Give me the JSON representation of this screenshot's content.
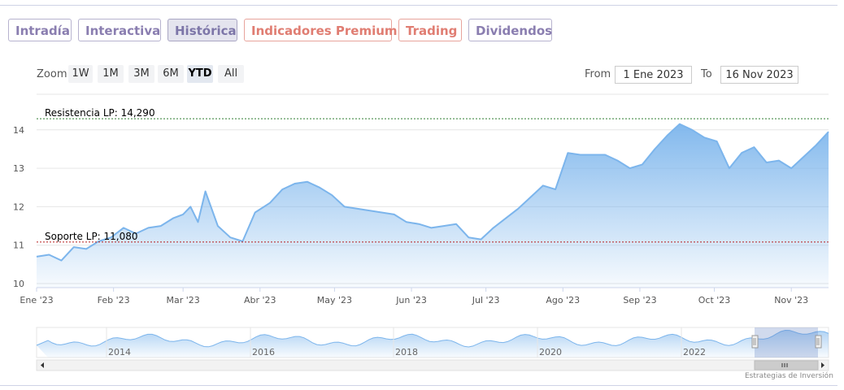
{
  "tabs": [
    {
      "label": "Intradía",
      "style": "purple"
    },
    {
      "label": "Interactiva",
      "style": "purple"
    },
    {
      "label": "Histórica",
      "style": "active"
    },
    {
      "label": "Indicadores Premium",
      "style": "premium"
    },
    {
      "label": "Trading",
      "style": "premium"
    },
    {
      "label": "Dividendos",
      "style": "purple"
    }
  ],
  "zoom": {
    "label": "Zoom",
    "options": [
      "1W",
      "1M",
      "3M",
      "6M",
      "YTD",
      "All"
    ],
    "selected": "YTD"
  },
  "range": {
    "from_label": "From",
    "from_value": "1 Ene 2023",
    "to_label": "To",
    "to_value": "16 Nov 2023"
  },
  "credit": "Estrategias de Inversión",
  "colors": {
    "line": "#7cb5ec",
    "area_top": "#7cb5ec",
    "resistance": "#2e7d32",
    "support": "#b71c1c",
    "tab_purple": "#8a7eb0",
    "tab_premium": "#e07d72"
  },
  "chart_data": {
    "type": "area",
    "title": "",
    "xlabel": "",
    "ylabel": "",
    "ylim": [
      10,
      14.3
    ],
    "y_ticks": [
      "10",
      "11",
      "12",
      "13",
      "14"
    ],
    "x_ticks": [
      "Ene '23",
      "Feb '23",
      "Mar '23",
      "Abr '23",
      "May '23",
      "Jun '23",
      "Jul '23",
      "Ago '23",
      "Sep '23",
      "Oct '23",
      "Nov '23"
    ],
    "grid": true,
    "series": [
      {
        "x": [
          "2023-01-01",
          "2023-01-06",
          "2023-01-11",
          "2023-01-16",
          "2023-01-21",
          "2023-01-26",
          "2023-01-31",
          "2023-02-05",
          "2023-02-10",
          "2023-02-15",
          "2023-02-20",
          "2023-02-25",
          "2023-03-01",
          "2023-03-04",
          "2023-03-07",
          "2023-03-10",
          "2023-03-15",
          "2023-03-20",
          "2023-03-25",
          "2023-03-30",
          "2023-04-05",
          "2023-04-10",
          "2023-04-15",
          "2023-04-20",
          "2023-04-25",
          "2023-04-30",
          "2023-05-05",
          "2023-05-10",
          "2023-05-15",
          "2023-05-20",
          "2023-05-25",
          "2023-05-30",
          "2023-06-04",
          "2023-06-09",
          "2023-06-14",
          "2023-06-19",
          "2023-06-24",
          "2023-06-29",
          "2023-07-04",
          "2023-07-09",
          "2023-07-14",
          "2023-07-19",
          "2023-07-24",
          "2023-07-29",
          "2023-08-03",
          "2023-08-08",
          "2023-08-13",
          "2023-08-18",
          "2023-08-23",
          "2023-08-28",
          "2023-09-02",
          "2023-09-07",
          "2023-09-12",
          "2023-09-17",
          "2023-09-22",
          "2023-09-27",
          "2023-10-02",
          "2023-10-07",
          "2023-10-12",
          "2023-10-17",
          "2023-10-22",
          "2023-10-27",
          "2023-11-01",
          "2023-11-06",
          "2023-11-11",
          "2023-11-16"
        ],
        "values": [
          10.7,
          10.75,
          10.6,
          10.95,
          10.9,
          11.1,
          11.2,
          11.45,
          11.3,
          11.45,
          11.5,
          11.7,
          11.8,
          12.0,
          11.6,
          12.4,
          11.5,
          11.2,
          11.1,
          11.85,
          12.1,
          12.45,
          12.6,
          12.65,
          12.5,
          12.3,
          12.0,
          11.95,
          11.9,
          11.85,
          11.8,
          11.6,
          11.55,
          11.45,
          11.5,
          11.55,
          11.2,
          11.15,
          11.45,
          11.7,
          11.95,
          12.25,
          12.55,
          12.45,
          13.4,
          13.35,
          13.35,
          13.35,
          13.2,
          13.0,
          13.1,
          13.5,
          13.85,
          14.15,
          14.0,
          13.8,
          13.7,
          13.0,
          13.4,
          13.55,
          13.15,
          13.2,
          13.0,
          13.3,
          13.6,
          13.95
        ]
      }
    ],
    "annotations": [
      {
        "label": "Resistencia LP: 14,290",
        "value": 14.29,
        "style": "dashed",
        "color": "#2e7d32"
      },
      {
        "label": "Soporte LP: 11,080",
        "value": 11.08,
        "style": "dashed",
        "color": "#b71c1c"
      }
    ],
    "navigator": {
      "x_ticks": [
        "2014",
        "2016",
        "2018",
        "2020",
        "2022"
      ]
    }
  }
}
